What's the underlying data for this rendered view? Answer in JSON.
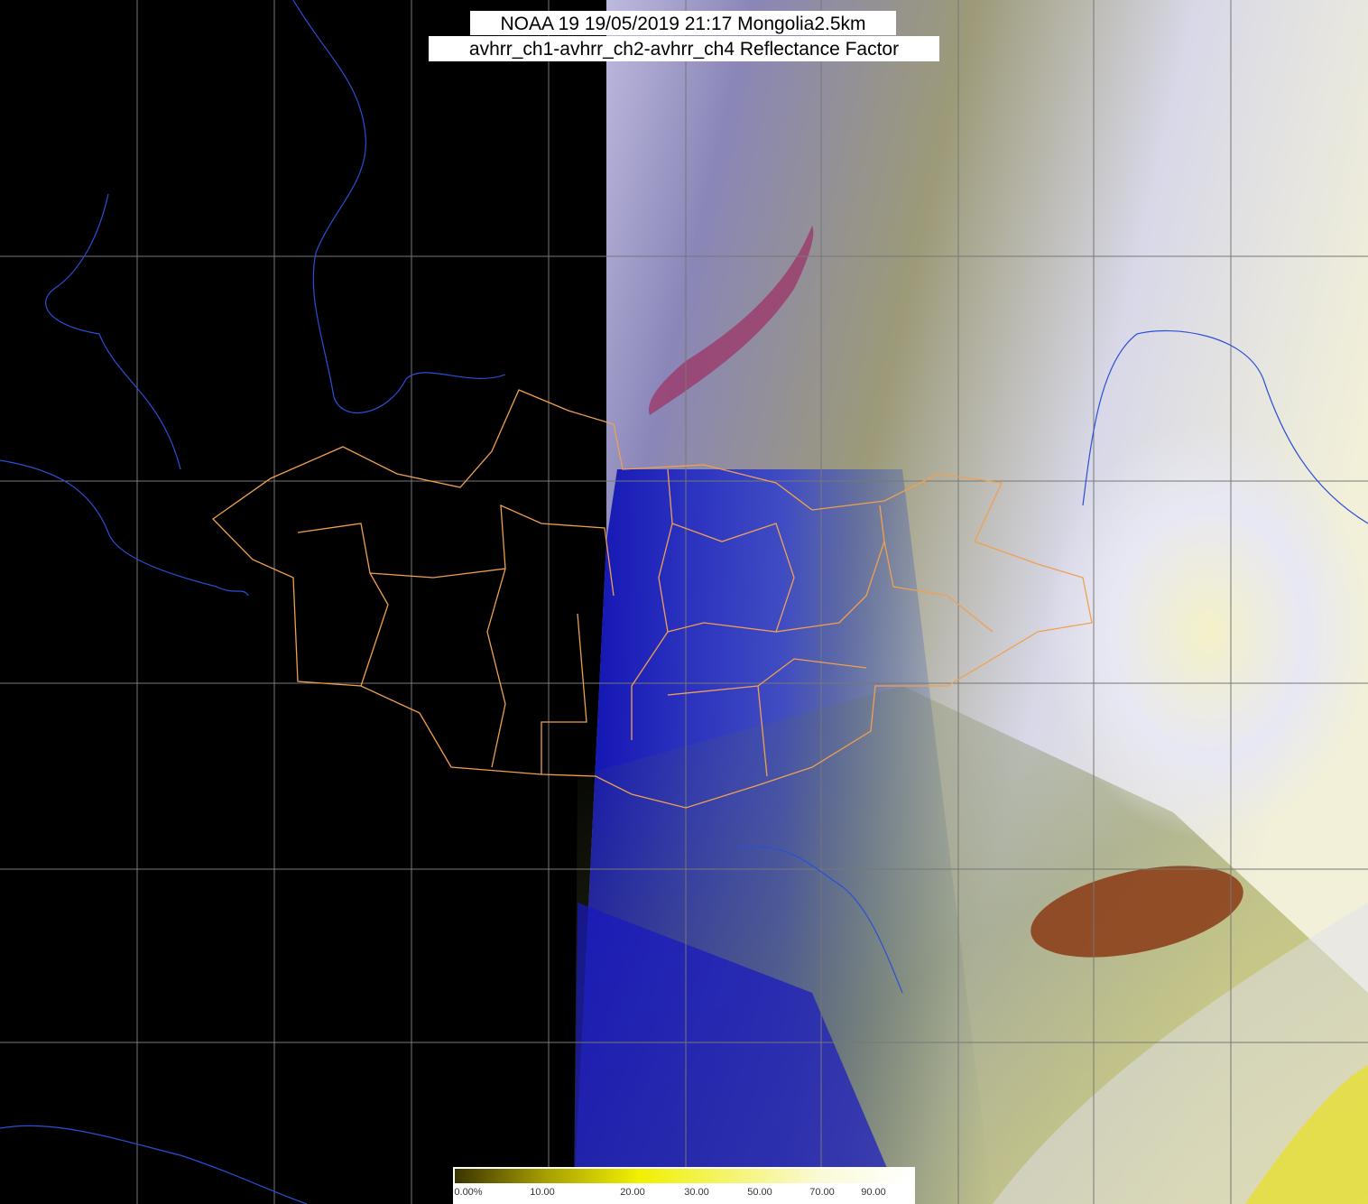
{
  "header": {
    "title": "NOAA 19 19/05/2019 21:17 Mongolia2.5km",
    "subtitle": "avhrr_ch1-avhrr_ch2-avhrr_ch4 Reflectance Factor"
  },
  "colorbar": {
    "labels": [
      "0.00%",
      "10.00",
      "20.00",
      "30.00",
      "50.00",
      "70.00",
      "90.00"
    ]
  }
}
